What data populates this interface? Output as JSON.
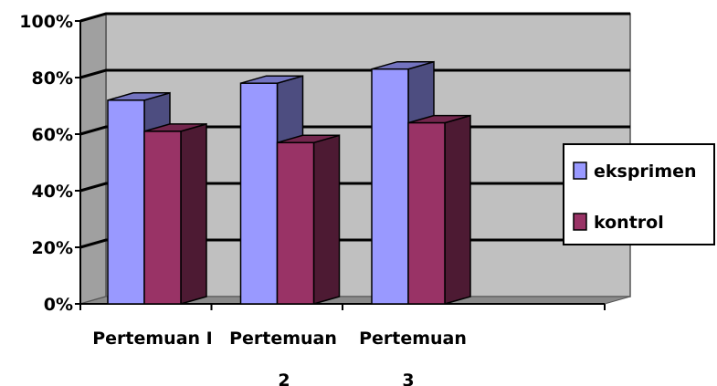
{
  "chart_data": {
    "type": "bar",
    "categories": [
      "Pertemuan I",
      "Pertemuan 2",
      "Pertemuan 3"
    ],
    "category_lines": [
      [
        "Pertemuan I"
      ],
      [
        "Pertemuan",
        "2"
      ],
      [
        "Pertemuan",
        "3"
      ]
    ],
    "series": [
      {
        "name": "eksprimen",
        "values": [
          72,
          78,
          83
        ],
        "color": "#9999ff"
      },
      {
        "name": "kontrol",
        "values": [
          61,
          57,
          64
        ],
        "color": "#993366"
      }
    ],
    "y_ticks": [
      "0%",
      "20%",
      "40%",
      "60%",
      "80%",
      "100%"
    ],
    "ylim": [
      0,
      100
    ],
    "y_unit": "%",
    "grid": true,
    "three_d": true,
    "wall_color": "#c0c0c0",
    "legend_position": "right"
  }
}
